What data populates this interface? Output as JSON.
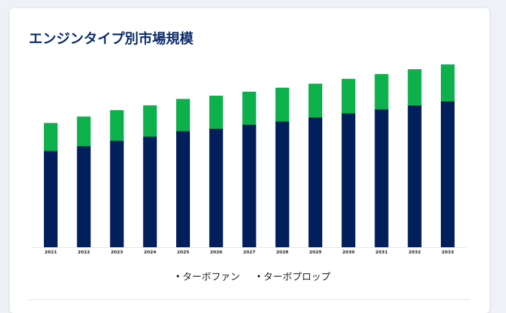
{
  "title": "エンジンタイプ別市場規模",
  "colors": {
    "turbofan": "#011f5b",
    "turboprop": "#0db14b"
  },
  "legend": [
    {
      "label": "ターボファン",
      "bullet": "•"
    },
    {
      "label": "ターボプロップ",
      "bullet": "•"
    }
  ],
  "chart_data": {
    "type": "bar",
    "stacked": true,
    "categories": [
      "2021",
      "2022",
      "2023",
      "2024",
      "2025",
      "2026",
      "2027",
      "2028",
      "2029",
      "2030",
      "2031",
      "2032",
      "2033"
    ],
    "series": [
      {
        "name": "ターボファン",
        "values": [
          120,
          126,
          133,
          138,
          145,
          148,
          153,
          157,
          162,
          167,
          172,
          177,
          182
        ]
      },
      {
        "name": "ターボプロップ",
        "values": [
          35,
          37,
          38,
          39,
          40,
          41,
          41,
          42,
          42,
          43,
          44,
          45,
          46
        ]
      }
    ],
    "ylim": [
      0,
      240
    ],
    "grid": false,
    "legend_position": "bottom"
  }
}
